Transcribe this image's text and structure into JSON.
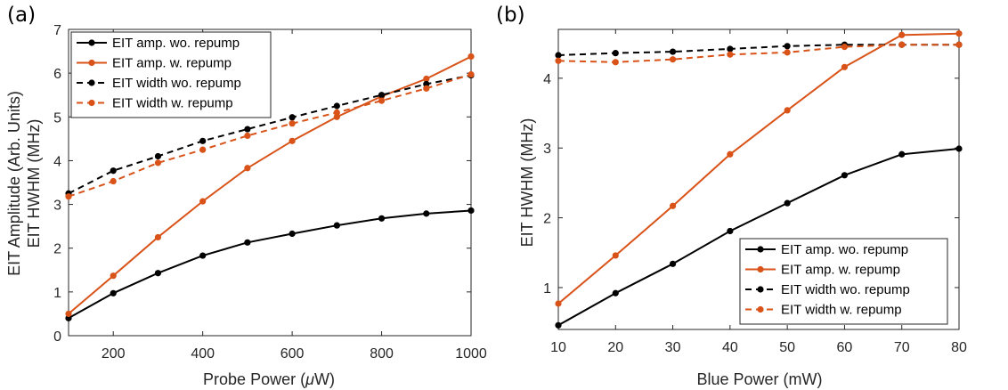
{
  "colors": {
    "black": "#000000",
    "orange": "#d95319",
    "axis": "#262626"
  },
  "chart_data": [
    {
      "type": "line",
      "panel_label": "(a)",
      "xlabel": "Probe Power (",
      "xlabel_unit_symbol": "μ",
      "xlabel_unit_rest": "W)",
      "ylabel_lines": [
        "EIT Amplitude (Arb. Units)",
        "EIT HWHM (MHz)"
      ],
      "xlim": [
        100,
        1000
      ],
      "ylim": [
        0,
        7
      ],
      "xticks": [
        200,
        400,
        600,
        800,
        1000
      ],
      "yticks": [
        0,
        1,
        2,
        3,
        4,
        5,
        6,
        7
      ],
      "legend_position": "top-left",
      "series": [
        {
          "name": "EIT amp. wo. repump",
          "color": "#000000",
          "dashed": false,
          "x": [
            100,
            200,
            300,
            400,
            500,
            600,
            700,
            800,
            900,
            1000
          ],
          "y": [
            0.4,
            0.97,
            1.43,
            1.83,
            2.13,
            2.33,
            2.52,
            2.68,
            2.79,
            2.86
          ]
        },
        {
          "name": "EIT amp. w. repump",
          "color": "#d95319",
          "dashed": false,
          "x": [
            100,
            200,
            300,
            400,
            500,
            600,
            700,
            800,
            900,
            1000
          ],
          "y": [
            0.5,
            1.37,
            2.25,
            3.07,
            3.83,
            4.45,
            5.0,
            5.47,
            5.87,
            6.38
          ]
        },
        {
          "name": "EIT width wo. repump",
          "color": "#000000",
          "dashed": true,
          "x": [
            100,
            200,
            300,
            400,
            500,
            600,
            700,
            800,
            900,
            1000
          ],
          "y": [
            3.25,
            3.77,
            4.1,
            4.45,
            4.72,
            4.99,
            5.25,
            5.5,
            5.75,
            5.95
          ]
        },
        {
          "name": "EIT width w. repump",
          "color": "#d95319",
          "dashed": true,
          "x": [
            100,
            200,
            300,
            400,
            500,
            600,
            700,
            800,
            900,
            1000
          ],
          "y": [
            3.18,
            3.53,
            3.95,
            4.25,
            4.57,
            4.85,
            5.1,
            5.37,
            5.65,
            5.97
          ]
        }
      ]
    },
    {
      "type": "line",
      "panel_label": "(b)",
      "xlabel": "Blue Power (mW)",
      "ylabel_lines": [
        "EIT HWHM (MHz)"
      ],
      "xlim": [
        10,
        80
      ],
      "ylim": [
        0.4,
        4.7
      ],
      "xticks": [
        10,
        20,
        30,
        40,
        50,
        60,
        70,
        80
      ],
      "yticks": [
        1,
        2,
        3,
        4
      ],
      "legend_position": "bottom-right",
      "series": [
        {
          "name": "EIT amp. wo. repump",
          "color": "#000000",
          "dashed": false,
          "x": [
            10,
            20,
            30,
            40,
            50,
            60,
            70,
            80
          ],
          "y": [
            0.46,
            0.92,
            1.34,
            1.81,
            2.21,
            2.61,
            2.91,
            2.99
          ]
        },
        {
          "name": "EIT amp. w. repump",
          "color": "#d95319",
          "dashed": false,
          "x": [
            10,
            20,
            30,
            40,
            50,
            60,
            70,
            80
          ],
          "y": [
            0.77,
            1.46,
            2.17,
            2.91,
            3.54,
            4.16,
            4.62,
            4.64
          ]
        },
        {
          "name": "EIT width wo. repump",
          "color": "#000000",
          "dashed": true,
          "x": [
            10,
            20,
            30,
            40,
            50,
            60,
            70,
            80
          ],
          "y": [
            4.33,
            4.36,
            4.38,
            4.42,
            4.46,
            4.48,
            4.48,
            4.48
          ]
        },
        {
          "name": "EIT width w. repump",
          "color": "#d95319",
          "dashed": true,
          "x": [
            10,
            20,
            30,
            40,
            50,
            60,
            70,
            80
          ],
          "y": [
            4.25,
            4.23,
            4.27,
            4.34,
            4.37,
            4.45,
            4.48,
            4.48
          ]
        }
      ]
    }
  ]
}
